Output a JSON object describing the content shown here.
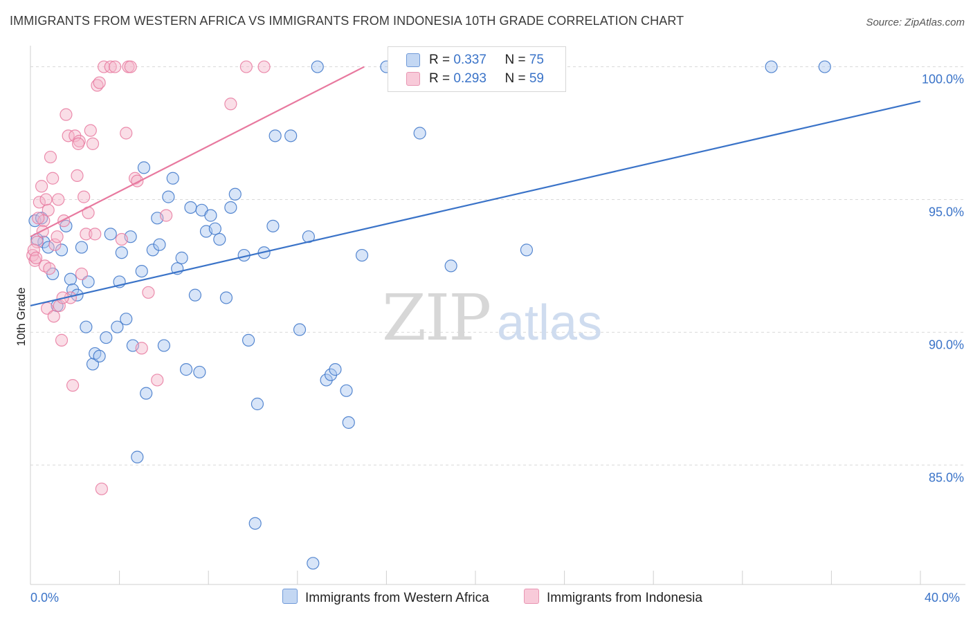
{
  "title": "IMMIGRANTS FROM WESTERN AFRICA VS IMMIGRANTS FROM INDONESIA 10TH GRADE CORRELATION CHART",
  "source": "Source: ZipAtlas.com",
  "watermark": {
    "zip": "ZIP",
    "atlas": "atlas"
  },
  "colors": {
    "blue": "#3a73c8",
    "blue_fill": "#a9c6ef",
    "pink": "#e8799f",
    "pink_fill": "#f5b6ca",
    "grid": "#d9d9d9"
  },
  "legend": {
    "rows": [
      {
        "r_label": "R = ",
        "r_value": "0.337",
        "n_label": "N = ",
        "n_value": "75"
      },
      {
        "r_label": "R = ",
        "r_value": "0.293",
        "n_label": "N = ",
        "n_value": "59"
      }
    ]
  },
  "bottom_legend": {
    "series1": "Immigrants from Western Africa",
    "series2": "Immigrants from Indonesia"
  },
  "chart_data": {
    "type": "scatter",
    "xlabel": "",
    "ylabel": "10th Grade",
    "xlim": [
      0,
      40
    ],
    "ylim": [
      80.5,
      100.9
    ],
    "x_tick_labels": [
      "0.0%",
      "40.0%"
    ],
    "y_ticks": [
      85,
      90,
      95,
      100
    ],
    "y_tick_labels": [
      "85.0%",
      "90.0%",
      "95.0%",
      "100.0%"
    ],
    "grid": true,
    "legend_position": "top-center",
    "series": [
      {
        "name": "Immigrants from Western Africa",
        "color": "#3a73c8",
        "trendline": {
          "x": [
            0,
            40
          ],
          "y": [
            91.0,
            98.7
          ]
        },
        "points": [
          [
            0.2,
            94.2
          ],
          [
            0.6,
            93.4
          ],
          [
            0.8,
            93.2
          ],
          [
            1.0,
            92.2
          ],
          [
            1.2,
            91.0
          ],
          [
            1.4,
            93.1
          ],
          [
            1.6,
            94.0
          ],
          [
            1.8,
            92.0
          ],
          [
            1.9,
            91.6
          ],
          [
            2.1,
            91.4
          ],
          [
            2.3,
            93.2
          ],
          [
            2.5,
            90.2
          ],
          [
            2.6,
            91.9
          ],
          [
            2.8,
            88.8
          ],
          [
            2.9,
            89.2
          ],
          [
            3.1,
            89.1
          ],
          [
            3.4,
            89.8
          ],
          [
            3.6,
            93.7
          ],
          [
            3.9,
            90.2
          ],
          [
            4.0,
            91.9
          ],
          [
            4.1,
            93.0
          ],
          [
            4.3,
            90.5
          ],
          [
            4.5,
            93.6
          ],
          [
            4.6,
            89.5
          ],
          [
            4.8,
            85.3
          ],
          [
            5.0,
            92.3
          ],
          [
            5.1,
            96.2
          ],
          [
            5.2,
            87.7
          ],
          [
            5.5,
            93.1
          ],
          [
            5.7,
            94.3
          ],
          [
            5.8,
            93.3
          ],
          [
            6.0,
            89.5
          ],
          [
            6.2,
            95.1
          ],
          [
            6.4,
            95.8
          ],
          [
            6.6,
            92.4
          ],
          [
            6.8,
            92.8
          ],
          [
            7.0,
            88.6
          ],
          [
            7.2,
            94.7
          ],
          [
            7.4,
            91.4
          ],
          [
            7.6,
            88.5
          ],
          [
            7.7,
            94.6
          ],
          [
            7.9,
            93.8
          ],
          [
            8.1,
            94.4
          ],
          [
            8.3,
            93.9
          ],
          [
            8.5,
            93.5
          ],
          [
            8.8,
            91.3
          ],
          [
            9.0,
            94.7
          ],
          [
            9.2,
            95.2
          ],
          [
            9.6,
            92.9
          ],
          [
            9.8,
            89.7
          ],
          [
            10.1,
            82.8
          ],
          [
            10.2,
            87.3
          ],
          [
            10.5,
            93.0
          ],
          [
            10.9,
            94.0
          ],
          [
            11.0,
            97.4
          ],
          [
            11.7,
            97.4
          ],
          [
            12.1,
            90.1
          ],
          [
            12.5,
            93.6
          ],
          [
            12.7,
            81.3
          ],
          [
            12.9,
            100.0
          ],
          [
            13.3,
            88.2
          ],
          [
            13.5,
            88.4
          ],
          [
            13.7,
            88.6
          ],
          [
            14.2,
            87.8
          ],
          [
            14.3,
            86.6
          ],
          [
            14.9,
            92.9
          ],
          [
            16.0,
            100.0
          ],
          [
            17.5,
            97.5
          ],
          [
            18.2,
            100.0
          ],
          [
            18.9,
            92.5
          ],
          [
            22.3,
            93.1
          ],
          [
            33.3,
            100.0
          ],
          [
            35.7,
            100.0
          ],
          [
            0.3,
            93.5
          ],
          [
            0.5,
            94.3
          ]
        ]
      },
      {
        "name": "Immigrants from Indonesia",
        "color": "#e8799f",
        "trendline": {
          "x": [
            0,
            15.0
          ],
          "y": [
            93.6,
            100.0
          ]
        },
        "points": [
          [
            0.1,
            92.9
          ],
          [
            0.2,
            92.7
          ],
          [
            0.3,
            93.4
          ],
          [
            0.4,
            94.9
          ],
          [
            0.5,
            95.5
          ],
          [
            0.6,
            94.2
          ],
          [
            0.7,
            95.0
          ],
          [
            0.8,
            94.6
          ],
          [
            0.9,
            96.6
          ],
          [
            1.0,
            95.8
          ],
          [
            1.1,
            93.3
          ],
          [
            1.2,
            93.6
          ],
          [
            1.3,
            91.0
          ],
          [
            1.4,
            89.7
          ],
          [
            1.5,
            94.2
          ],
          [
            1.6,
            98.2
          ],
          [
            1.7,
            97.4
          ],
          [
            1.8,
            91.3
          ],
          [
            1.9,
            88.0
          ],
          [
            2.0,
            97.4
          ],
          [
            2.1,
            95.9
          ],
          [
            2.2,
            97.2
          ],
          [
            2.3,
            92.2
          ],
          [
            2.4,
            95.1
          ],
          [
            2.5,
            93.7
          ],
          [
            2.6,
            94.5
          ],
          [
            2.7,
            97.6
          ],
          [
            2.8,
            97.1
          ],
          [
            2.9,
            93.7
          ],
          [
            3.0,
            99.3
          ],
          [
            3.1,
            99.4
          ],
          [
            3.2,
            84.1
          ],
          [
            3.3,
            100.0
          ],
          [
            3.6,
            100.0
          ],
          [
            3.8,
            100.0
          ],
          [
            4.1,
            93.5
          ],
          [
            4.3,
            97.5
          ],
          [
            4.4,
            100.0
          ],
          [
            4.5,
            100.0
          ],
          [
            4.7,
            95.8
          ],
          [
            4.8,
            95.7
          ],
          [
            5.0,
            89.4
          ],
          [
            5.3,
            91.5
          ],
          [
            5.7,
            88.2
          ],
          [
            6.1,
            94.4
          ],
          [
            9.0,
            98.6
          ],
          [
            9.7,
            100.0
          ],
          [
            10.5,
            100.0
          ],
          [
            0.15,
            93.1
          ],
          [
            0.25,
            92.8
          ],
          [
            0.35,
            94.3
          ],
          [
            0.55,
            93.8
          ],
          [
            0.65,
            92.5
          ],
          [
            0.75,
            90.9
          ],
          [
            0.85,
            92.4
          ],
          [
            1.05,
            90.6
          ],
          [
            1.25,
            95.0
          ],
          [
            1.45,
            91.3
          ],
          [
            2.15,
            97.1
          ]
        ]
      }
    ]
  }
}
